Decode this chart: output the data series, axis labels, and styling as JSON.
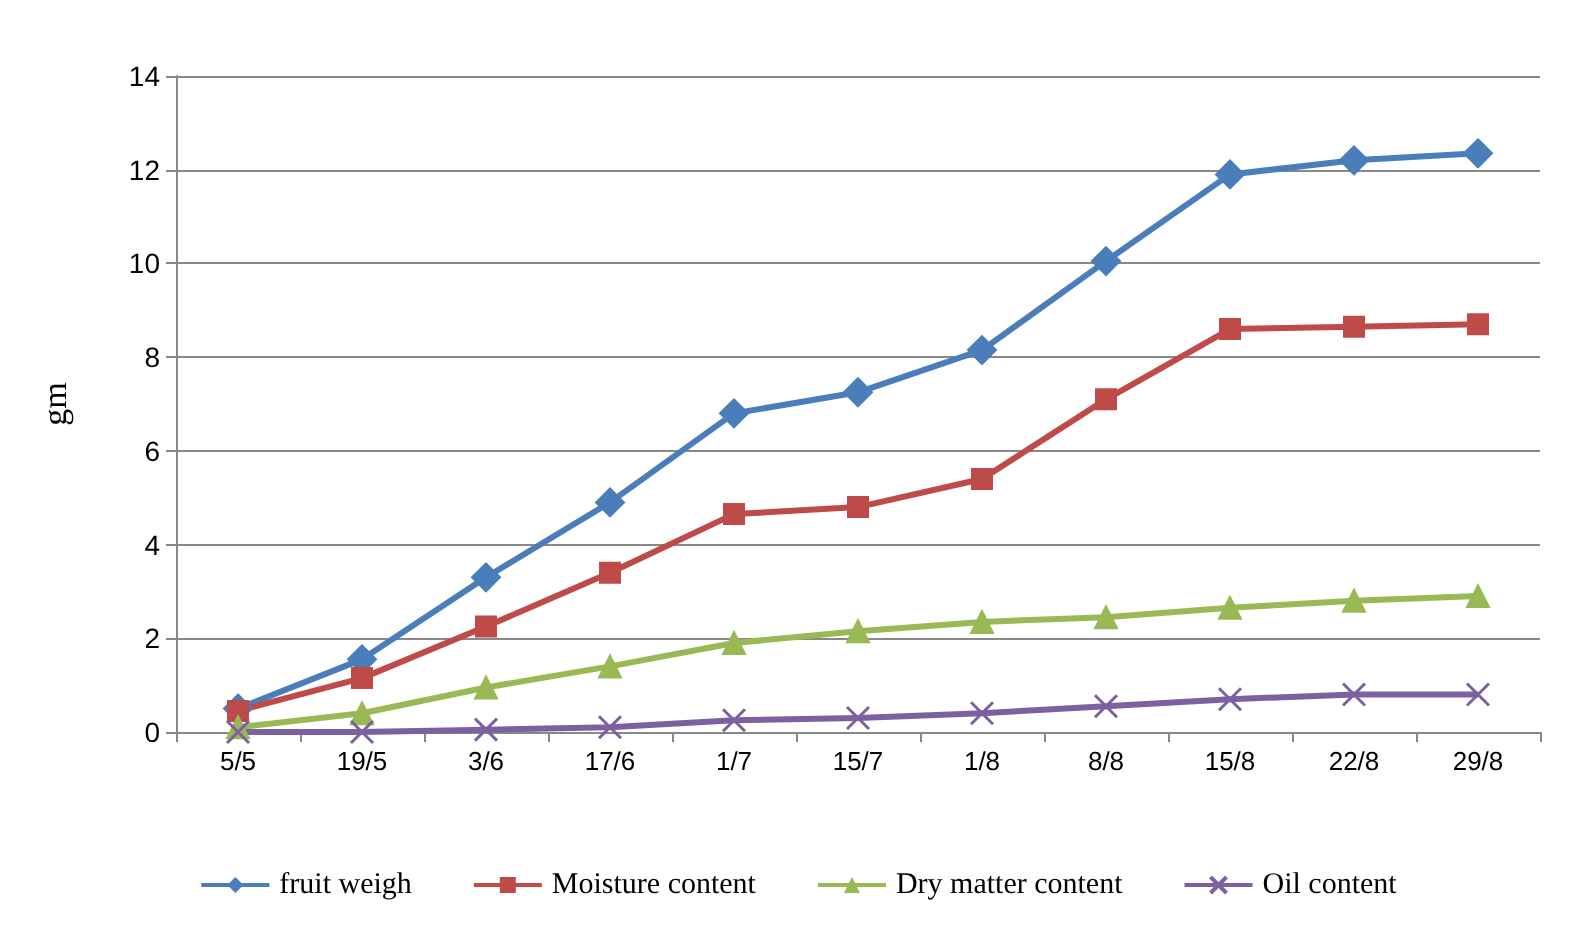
{
  "chart_data": {
    "type": "line",
    "ylabel": "gm",
    "categories": [
      "5/5",
      "19/5",
      "3/6",
      "17/6",
      "1/7",
      "15/7",
      "1/8",
      "8/8",
      "15/8",
      "22/8",
      "29/8"
    ],
    "series": [
      {
        "name": "fruit weigh",
        "color": "#4a7ebb",
        "marker": "diamond",
        "values": [
          0.5,
          1.55,
          3.3,
          4.9,
          6.8,
          7.25,
          8.15,
          10.05,
          11.9,
          12.2,
          12.35
        ]
      },
      {
        "name": "Moisture content",
        "color": "#be4b48",
        "marker": "square",
        "values": [
          0.45,
          1.15,
          2.25,
          3.4,
          4.65,
          4.8,
          5.4,
          7.1,
          8.6,
          8.65,
          8.7
        ]
      },
      {
        "name": "Dry matter content",
        "color": "#98b954",
        "marker": "triangle",
        "values": [
          0.1,
          0.4,
          0.95,
          1.4,
          1.9,
          2.15,
          2.35,
          2.45,
          2.65,
          2.8,
          2.9
        ]
      },
      {
        "name": "Oil content",
        "color": "#7d60a0",
        "marker": "cross",
        "values": [
          0,
          0,
          0.05,
          0.1,
          0.25,
          0.3,
          0.4,
          0.55,
          0.7,
          0.8,
          0.8
        ]
      }
    ],
    "ylim": [
      0,
      14
    ],
    "yticks": [
      0,
      2,
      4,
      6,
      8,
      10,
      12,
      14
    ],
    "grid": "y",
    "legend": "bottom"
  }
}
